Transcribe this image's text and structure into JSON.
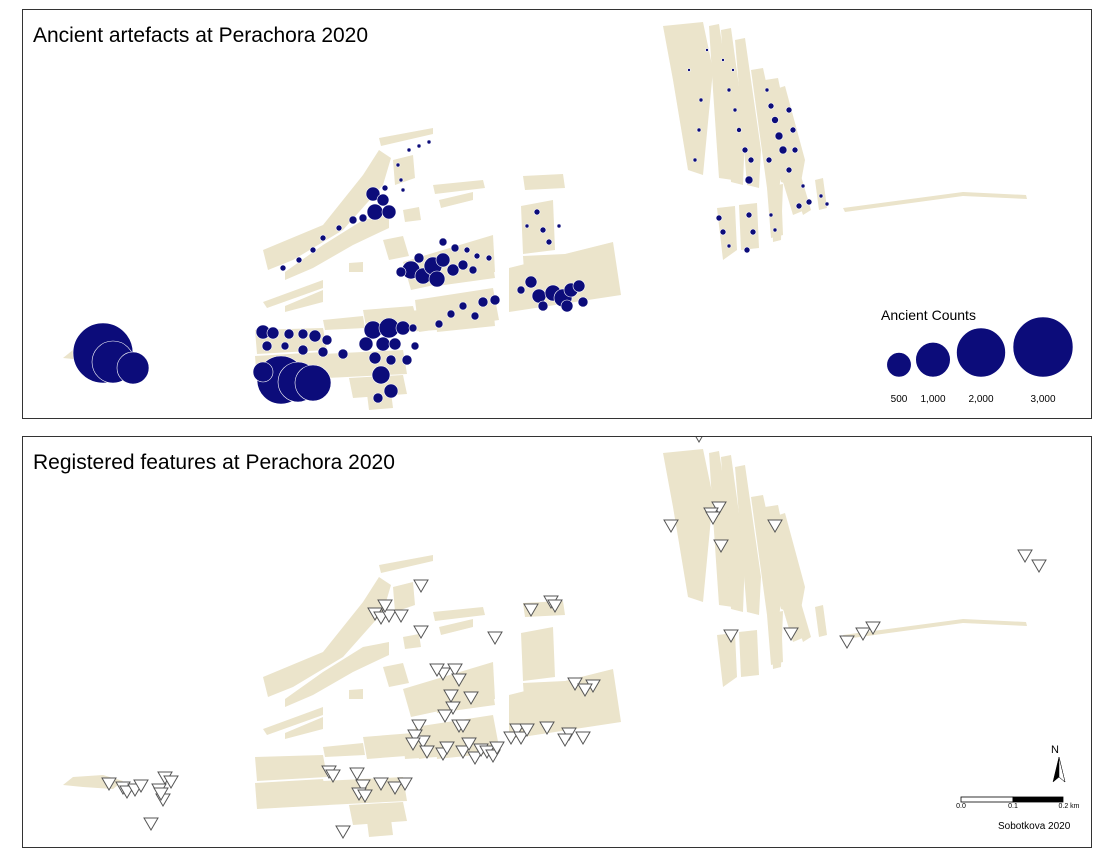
{
  "maps": {
    "top": {
      "title": "Ancient artefacts at Perachora 2020"
    },
    "bottom": {
      "title": "Registered features at Perachora 2020"
    }
  },
  "legend": {
    "title": "Ancient Counts",
    "items": [
      {
        "label": "500",
        "value": 500
      },
      {
        "label": "1,000",
        "value": 1000
      },
      {
        "label": "2,000",
        "value": 2000
      },
      {
        "label": "3,000",
        "value": 3000
      }
    ]
  },
  "scale_bar": {
    "ticks": [
      "0.0",
      "0.1",
      "0.2 km"
    ]
  },
  "north_arrow": {
    "label": "N"
  },
  "credit": "Sobotkova 2020",
  "colors": {
    "fields": "#ebe4cb",
    "points": "#0c0c7a",
    "features": "#ffffff",
    "feature_stroke": "#555555"
  }
}
